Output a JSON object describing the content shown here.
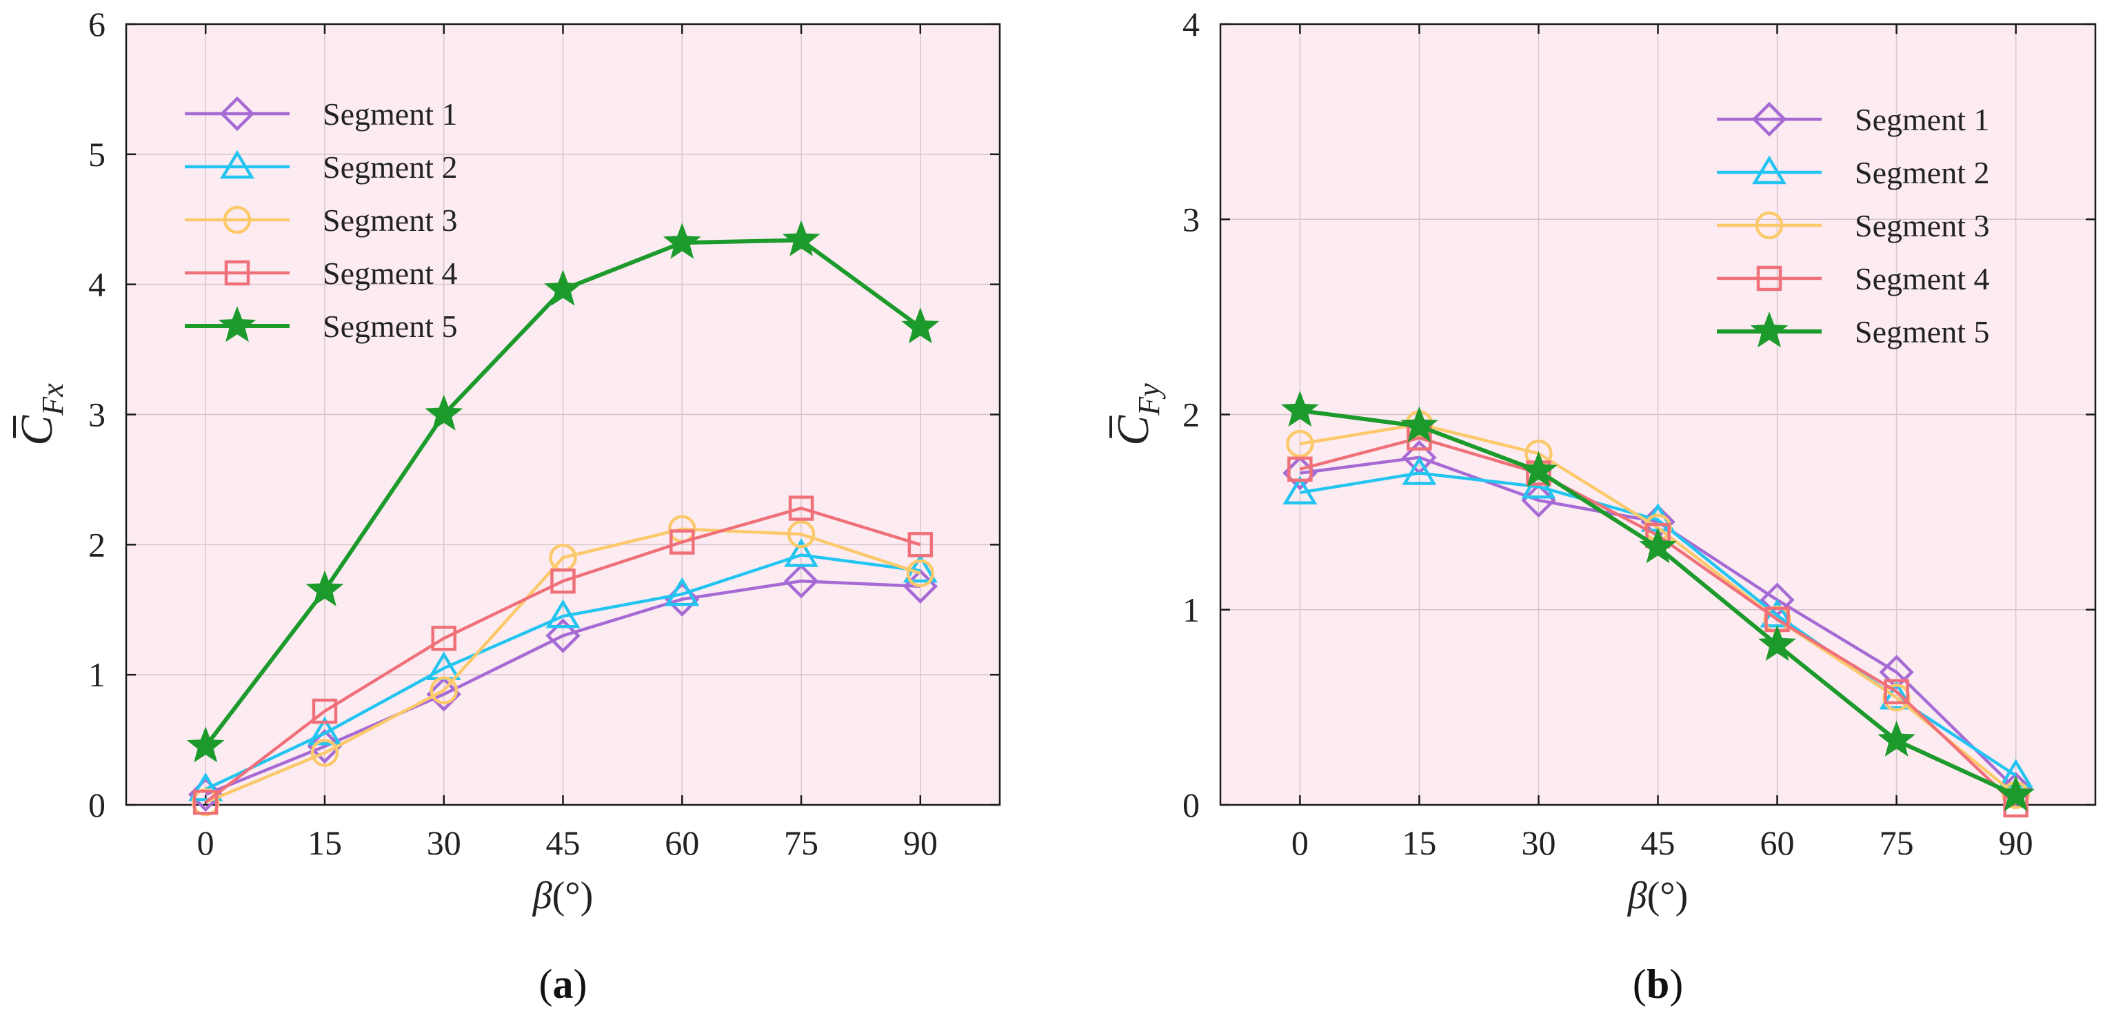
{
  "chart_data": [
    {
      "type": "line",
      "panel_label": "(a)",
      "panel_letter": "a",
      "ylabel_symbol": "C",
      "ylabel_subscript": "Fx",
      "xlabel_symbol": "β",
      "xlabel_unit": "(°)",
      "x": [
        0,
        15,
        30,
        45,
        60,
        75,
        90
      ],
      "xticks": [
        "0",
        "15",
        "30",
        "45",
        "60",
        "75",
        "90"
      ],
      "xlim": [
        -10,
        100
      ],
      "ylim": [
        0,
        6
      ],
      "yticks": [
        "0",
        "1",
        "2",
        "3",
        "4",
        "5",
        "6"
      ],
      "grid": true,
      "legend_position": "top-left",
      "series": [
        {
          "name": "Segment 1",
          "marker": "diamond",
          "values": [
            0.08,
            0.45,
            0.85,
            1.3,
            1.58,
            1.72,
            1.68
          ]
        },
        {
          "name": "Segment 2",
          "marker": "triangle",
          "values": [
            0.12,
            0.55,
            1.05,
            1.45,
            1.62,
            1.92,
            1.8
          ]
        },
        {
          "name": "Segment 3",
          "marker": "circle",
          "values": [
            0.02,
            0.4,
            0.88,
            1.9,
            2.12,
            2.08,
            1.78
          ]
        },
        {
          "name": "Segment 4",
          "marker": "square",
          "values": [
            0.02,
            0.72,
            1.28,
            1.72,
            2.02,
            2.28,
            2.0
          ]
        },
        {
          "name": "Segment 5",
          "marker": "star",
          "values": [
            0.45,
            1.65,
            3.0,
            3.96,
            4.32,
            4.34,
            3.67
          ]
        }
      ]
    },
    {
      "type": "line",
      "panel_label": "(b)",
      "panel_letter": "b",
      "ylabel_symbol": "C",
      "ylabel_subscript": "Fy",
      "xlabel_symbol": "β",
      "xlabel_unit": "(°)",
      "x": [
        0,
        15,
        30,
        45,
        60,
        75,
        90
      ],
      "xticks": [
        "0",
        "15",
        "30",
        "45",
        "60",
        "75",
        "90"
      ],
      "xlim": [
        -10,
        100
      ],
      "ylim": [
        0,
        4
      ],
      "yticks": [
        "0",
        "1",
        "2",
        "3",
        "4"
      ],
      "grid": true,
      "legend_position": "top-right",
      "series": [
        {
          "name": "Segment 1",
          "marker": "diamond",
          "values": [
            1.7,
            1.78,
            1.56,
            1.45,
            1.05,
            0.68,
            0.08
          ]
        },
        {
          "name": "Segment 2",
          "marker": "triangle",
          "values": [
            1.6,
            1.7,
            1.63,
            1.46,
            0.97,
            0.55,
            0.15
          ]
        },
        {
          "name": "Segment 3",
          "marker": "circle",
          "values": [
            1.85,
            1.95,
            1.8,
            1.42,
            0.95,
            0.55,
            0.05
          ]
        },
        {
          "name": "Segment 4",
          "marker": "square",
          "values": [
            1.72,
            1.88,
            1.7,
            1.38,
            0.95,
            0.58,
            0.0
          ]
        },
        {
          "name": "Segment 5",
          "marker": "star",
          "values": [
            2.02,
            1.94,
            1.71,
            1.32,
            0.82,
            0.33,
            0.05
          ]
        }
      ]
    }
  ],
  "colors": {
    "plot_background": "#fcecf2",
    "grid": "#d6c6cc",
    "axis": "#1a1a1a",
    "Segment 1": "#a66ad4",
    "Segment 2": "#23c4f0",
    "Segment 3": "#fcc96a",
    "Segment 4": "#f0707a",
    "Segment 5": "#1d9a2c"
  }
}
